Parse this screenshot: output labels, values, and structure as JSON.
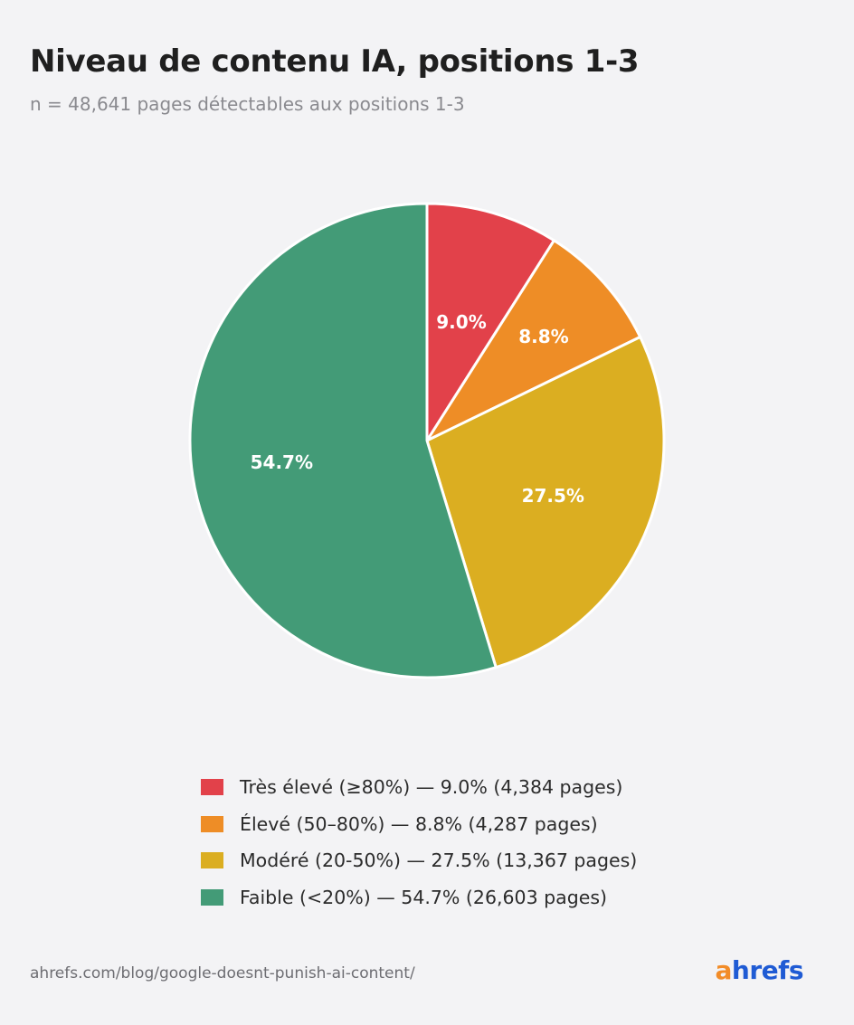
{
  "title": "Niveau de contenu IA, positions 1-3",
  "subtitle": "n = 48,641 pages détectables aux positions 1-3",
  "chart_data": {
    "type": "pie",
    "title": "Niveau de contenu IA, positions 1-3",
    "subtitle": "n = 48,641 pages détectables aux positions 1-3",
    "legend_position": "bottom",
    "slices": [
      {
        "value": 9.0,
        "label": "9.0%",
        "pages": 4384,
        "legend": "Très élevé (≥80%) — 9.0% (4,384 pages)",
        "color": "#e2414a"
      },
      {
        "value": 8.8,
        "label": "8.8%",
        "pages": 4287,
        "legend": "Élevé (50–80%) — 8.8% (4,287 pages)",
        "color": "#ee8d26"
      },
      {
        "value": 27.5,
        "label": "27.5%",
        "pages": 13367,
        "legend": "Modéré (20-50%) — 27.5% (13,367 pages)",
        "color": "#dbae21"
      },
      {
        "value": 54.7,
        "label": "54.7%",
        "pages": 26603,
        "legend": "Faible (<20%) — 54.7% (26,603 pages)",
        "color": "#439b77"
      }
    ]
  },
  "footer": {
    "url": "ahrefs.com/blog/google-doesnt-punish-ai-content/",
    "brand_a": "a",
    "brand_rest": "hrefs"
  }
}
